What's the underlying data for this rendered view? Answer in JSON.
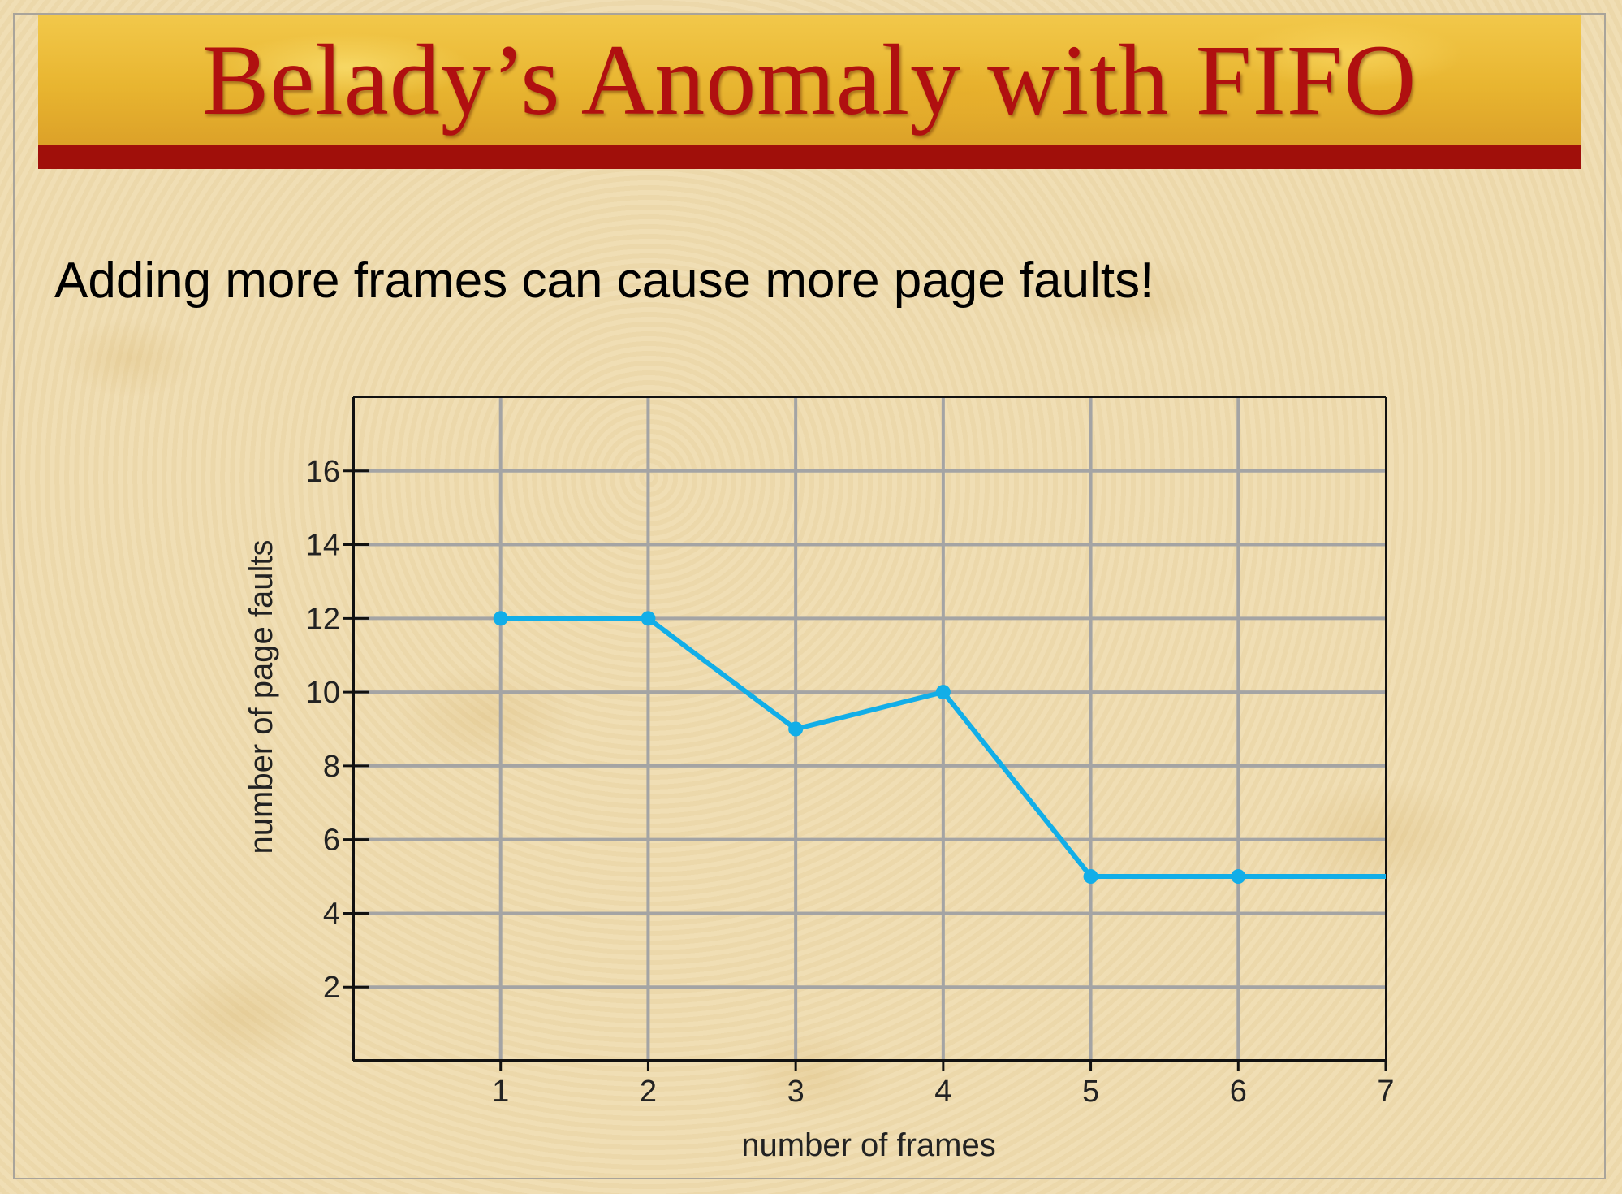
{
  "slide": {
    "title": "Belady’s Anomaly with FIFO",
    "subtitle": "Adding more frames can cause more page faults!",
    "colors": {
      "title_text": "#b01010",
      "title_bar": "#a00f0a",
      "band": "#e8b530"
    }
  },
  "chart_data": {
    "type": "line",
    "title": "",
    "xlabel": "number of frames",
    "ylabel": "number of page faults",
    "xlim": [
      0,
      7
    ],
    "ylim": [
      0,
      18
    ],
    "xticks": [
      1,
      2,
      3,
      4,
      5,
      6,
      7
    ],
    "yticks": [
      2,
      4,
      6,
      8,
      10,
      12,
      14,
      16
    ],
    "grid": true,
    "series": [
      {
        "color": "#12aee8",
        "x": [
          1,
          2,
          3,
          4,
          5,
          6,
          7
        ],
        "y": [
          12,
          12,
          9,
          10,
          5,
          5,
          5
        ],
        "markers": [
          true,
          true,
          true,
          true,
          true,
          true,
          false
        ]
      }
    ]
  }
}
